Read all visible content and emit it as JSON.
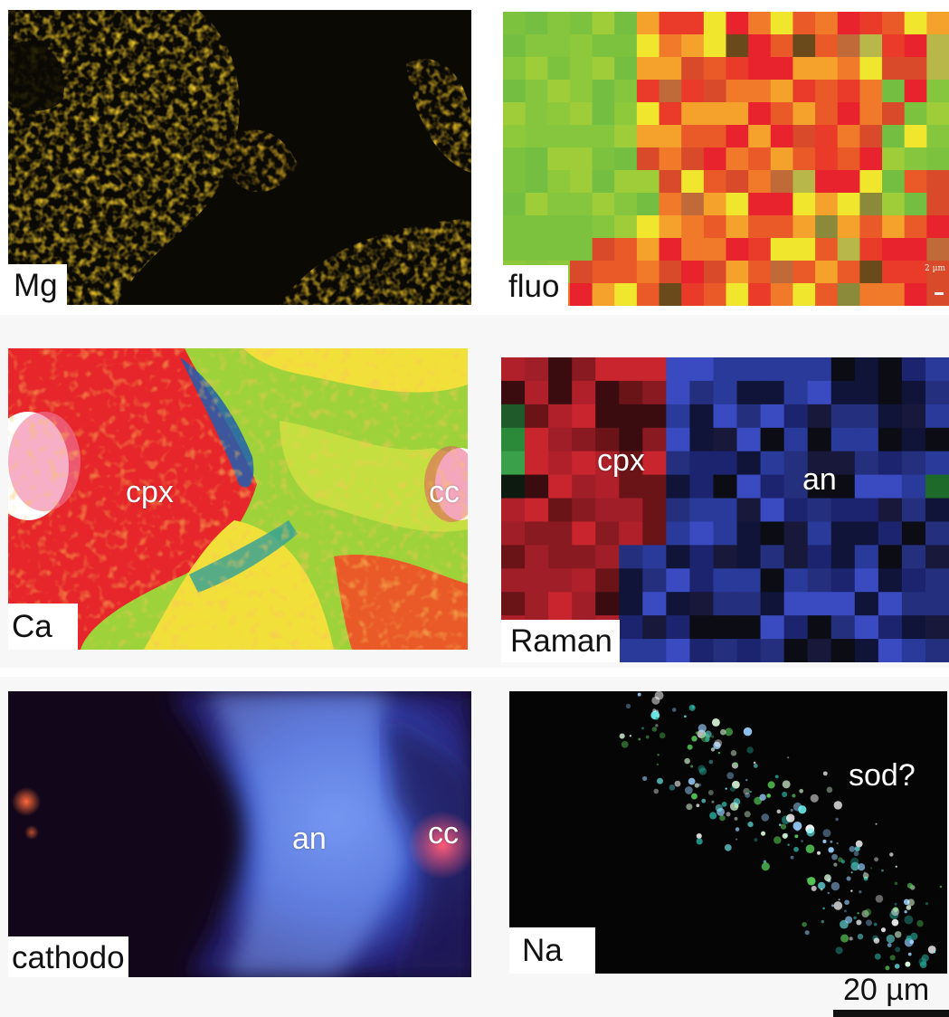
{
  "panels": {
    "mg": {
      "tag": "Mg"
    },
    "fluo": {
      "tag": "fluo",
      "mini_scale": "2 µm"
    },
    "ca": {
      "tag": "Ca",
      "labels": {
        "cpx": "cpx",
        "cc": "cc"
      }
    },
    "raman": {
      "tag": "Raman",
      "labels": {
        "cpx": "cpx",
        "an": "an"
      }
    },
    "cathodo": {
      "tag": "cathodo",
      "labels": {
        "an": "an",
        "cc": "cc"
      }
    },
    "na": {
      "tag": "Na",
      "labels": {
        "sod": "sod?"
      }
    }
  },
  "scale_bar": {
    "label": "20 µm"
  },
  "colors": {
    "mg_yellow": "#e8c22a",
    "mg_black": "#0b0904",
    "fluo_green": "#7cc23f",
    "fluo_red": "#e8232d",
    "fluo_yellow": "#f0e62e",
    "fluo_orange": "#f07a2a",
    "ca_red": "#e6262a",
    "ca_green": "#9ed23a",
    "ca_yellow": "#f2e03a",
    "ca_blue": "#1f5fb0",
    "raman_red": "#b0202a",
    "raman_blue": "#2a3a9a",
    "raman_black": "#0c0c14",
    "cathodo_dark": "#12071a",
    "cathodo_blue": "#5b7fe0",
    "na_black": "#050505"
  }
}
